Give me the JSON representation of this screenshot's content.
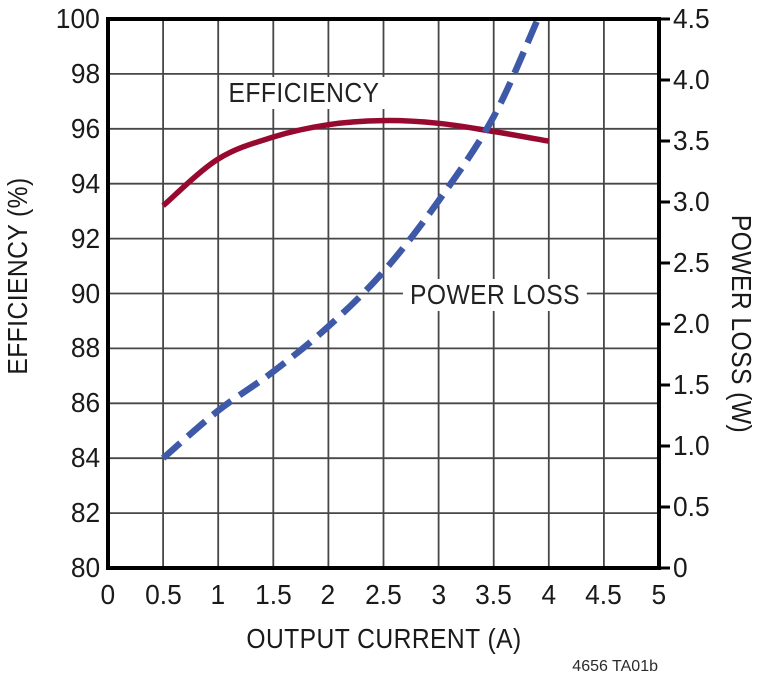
{
  "chart_data": {
    "type": "line",
    "title": "",
    "xlabel": "OUTPUT CURRENT (A)",
    "ylabel_left": "EFFICIENCY (%)",
    "ylabel_right": "POWER LOSS (W)",
    "xlim": [
      0,
      5
    ],
    "ylim_left": [
      80,
      100
    ],
    "ylim_right": [
      0,
      4.5
    ],
    "grid": true,
    "x_tick_labels": [
      "0",
      "0.5",
      "1",
      "1.5",
      "2",
      "2.5",
      "3",
      "3.5",
      "4",
      "4.5",
      "5"
    ],
    "left_tick_labels": [
      "100",
      "98",
      "96",
      "94",
      "92",
      "90",
      "88",
      "86",
      "84",
      "82",
      "80"
    ],
    "right_tick_labels": [
      "4.5",
      "4.0",
      "3.5",
      "3.0",
      "2.5",
      "2.0",
      "1.5",
      "1.0",
      "0.5",
      "0"
    ],
    "series": [
      {
        "name": "EFFICIENCY",
        "axis": "left",
        "style": "solid",
        "color": "#98092F",
        "x": [
          0.5,
          1.0,
          1.5,
          2.0,
          2.5,
          3.0,
          3.5,
          4.0
        ],
        "y": [
          93.2,
          94.9,
          95.7,
          96.15,
          96.3,
          96.2,
          95.9,
          95.55
        ]
      },
      {
        "name": "POWER LOSS",
        "axis": "right",
        "style": "dashed",
        "color": "#3E59A8",
        "x": [
          0.5,
          1.0,
          1.5,
          2.0,
          2.5,
          3.0,
          3.5,
          3.9
        ],
        "y": [
          0.9,
          1.29,
          1.61,
          1.98,
          2.43,
          3.01,
          3.7,
          4.5
        ]
      }
    ],
    "annotations": [
      {
        "text": "EFFICIENCY",
        "axis": "left",
        "x": 1.78,
        "y": 97.3
      },
      {
        "text": "POWER LOSS",
        "axis": "right",
        "x": 3.51,
        "y": 2.24
      }
    ],
    "footnote": "4656 TA01b"
  },
  "colors": {
    "efficiency_curve": "#98092F",
    "power_loss_curve": "#3E59A8",
    "grid": "#474747",
    "border": "#000000",
    "text": "#1a1a1a"
  }
}
